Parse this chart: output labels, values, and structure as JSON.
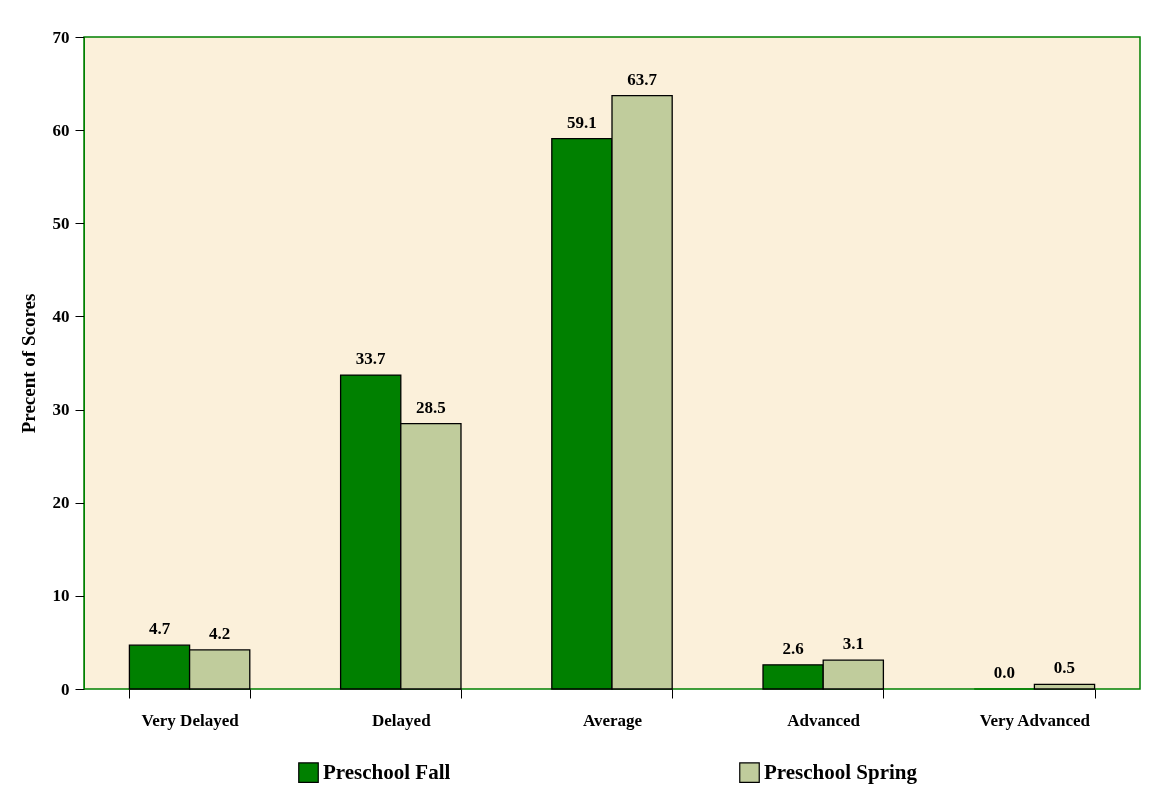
{
  "chart_data": {
    "type": "bar",
    "ylabel": "Precent of Scores",
    "categories": [
      "Very Delayed",
      "Delayed",
      "Average",
      "Advanced",
      "Very Advanced"
    ],
    "series": [
      {
        "name": "Preschool Fall",
        "color": "#008000",
        "values": [
          4.7,
          33.7,
          59.1,
          2.6,
          0.0
        ],
        "value_labels": [
          "4.7",
          "33.7",
          "59.1",
          "2.6",
          "0.0"
        ]
      },
      {
        "name": "Preschool Spring",
        "color": "#c0cc9c",
        "values": [
          4.2,
          28.5,
          63.7,
          3.1,
          0.5
        ],
        "value_labels": [
          "4.2",
          "28.5",
          "63.7",
          "3.1",
          "0.5"
        ]
      }
    ],
    "ylim": [
      0,
      70
    ],
    "yticks": [
      0,
      10,
      20,
      30,
      40,
      50,
      60,
      70
    ],
    "grid": false,
    "legend": "bottom"
  }
}
